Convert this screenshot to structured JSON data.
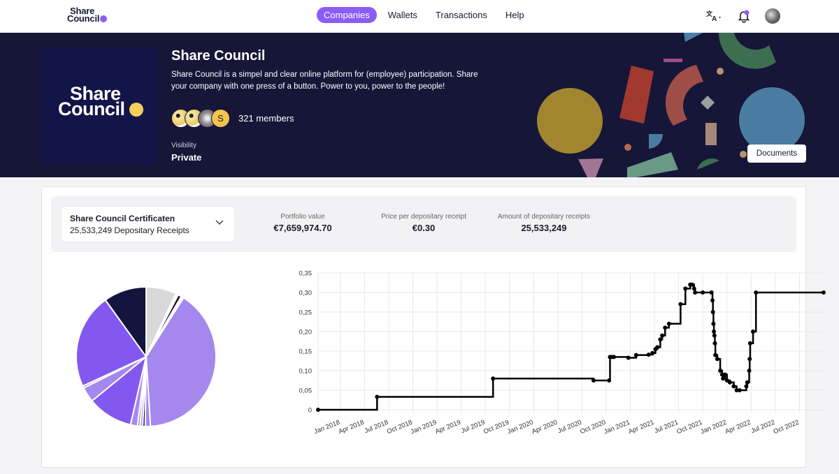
{
  "topbar": {
    "logo": {
      "line1": "Share",
      "line2": "Council"
    },
    "nav": [
      {
        "label": "Companies",
        "active": true
      },
      {
        "label": "Wallets"
      },
      {
        "label": "Transactions"
      },
      {
        "label": "Help"
      }
    ],
    "icons": {
      "translate": "translate-icon",
      "notifications": "bell-icon",
      "avatar": "user-avatar"
    }
  },
  "hero": {
    "logo": {
      "line1": "Share",
      "line2": "Council"
    },
    "title": "Share Council",
    "description": "Share Council is a simpel and clear online platform for (employee) participation. Share your company with one press of a button. Power to you, power to the people!",
    "members_label": "321 members",
    "member_avatar_initial": "S",
    "visibility_label": "Visibility",
    "visibility_value": "Private",
    "documents_label": "Documents"
  },
  "summary": {
    "selector": {
      "name": "Share Council Certificaten",
      "subtitle": "25,533,249 Depositary Receipts"
    },
    "stats": [
      {
        "label": "Portfolio value",
        "value": "€7,659,974.70"
      },
      {
        "label": "Price per depositary receipt",
        "value": "€0.30"
      },
      {
        "label": "Amount of depositary receipts",
        "value": "25,533,249"
      }
    ]
  },
  "colors": {
    "accent": "#8b5cf6",
    "hero_bg": "#161638",
    "dark": "#131447",
    "gold": "#f5cf5a"
  },
  "chart_data": [
    {
      "type": "pie",
      "title": "",
      "slices": [
        {
          "value": 7.0,
          "color": "#d9d9d9"
        },
        {
          "value": 0.6,
          "color": "#ffffff"
        },
        {
          "value": 0.8,
          "color": "#14143f"
        },
        {
          "value": 0.6,
          "color": "#ffffff"
        },
        {
          "value": 40.0,
          "color": "#a588ee"
        },
        {
          "value": 1.2,
          "color": "#a588ee"
        },
        {
          "value": 0.6,
          "color": "#14143f"
        },
        {
          "value": 0.6,
          "color": "#a588ee"
        },
        {
          "value": 0.6,
          "color": "#a588ee"
        },
        {
          "value": 1.6,
          "color": "#a588ee"
        },
        {
          "value": 10.5,
          "color": "#8358f0"
        },
        {
          "value": 3.5,
          "color": "#a588ee"
        },
        {
          "value": 0.5,
          "color": "#a588ee"
        },
        {
          "value": 22.0,
          "color": "#8358f0"
        },
        {
          "value": 9.9,
          "color": "#14143f"
        }
      ]
    },
    {
      "type": "line",
      "step": true,
      "title": "",
      "xlabel": "",
      "ylabel": "",
      "ylim": [
        0,
        0.35
      ],
      "yticks": [
        "0",
        "0,05",
        "0,10",
        "0,15",
        "0,20",
        "0,25",
        "0,30",
        "0,35"
      ],
      "xticks": [
        "Jan 2018",
        "Apr 2018",
        "Jul 2018",
        "Oct 2018",
        "Jan 2019",
        "Apr 2019",
        "Jul 2019",
        "Oct 2019",
        "Jan 2020",
        "Apr 2020",
        "Jul 2020",
        "Oct 2020",
        "Jan 2021",
        "Apr 2021",
        "Jul 2021",
        "Oct 2021",
        "Jan 2022",
        "Apr 2022",
        "Jul 2022",
        "Oct 2022"
      ],
      "xlim": [
        2017.77,
        2023.0
      ],
      "grid": true,
      "series": [
        {
          "name": "Price per depositary receipt",
          "points": [
            [
              2017.77,
              0.0
            ],
            [
              2018.38,
              0.033
            ],
            [
              2019.58,
              0.08
            ],
            [
              2020.62,
              0.075
            ],
            [
              2020.78,
              0.075
            ],
            [
              2020.79,
              0.135
            ],
            [
              2020.81,
              0.135
            ],
            [
              2020.83,
              0.135
            ],
            [
              2020.98,
              0.133
            ],
            [
              2021.06,
              0.14
            ],
            [
              2021.19,
              0.141
            ],
            [
              2021.23,
              0.145
            ],
            [
              2021.26,
              0.155
            ],
            [
              2021.28,
              0.16
            ],
            [
              2021.31,
              0.18
            ],
            [
              2021.33,
              0.19
            ],
            [
              2021.36,
              0.21
            ],
            [
              2021.4,
              0.22
            ],
            [
              2021.52,
              0.27
            ],
            [
              2021.57,
              0.31
            ],
            [
              2021.62,
              0.32
            ],
            [
              2021.64,
              0.32
            ],
            [
              2021.66,
              0.31
            ],
            [
              2021.67,
              0.3
            ],
            [
              2021.75,
              0.3
            ],
            [
              2021.84,
              0.3
            ],
            [
              2021.85,
              0.28
            ],
            [
              2021.855,
              0.25
            ],
            [
              2021.86,
              0.22
            ],
            [
              2021.865,
              0.2
            ],
            [
              2021.87,
              0.19
            ],
            [
              2021.875,
              0.17
            ],
            [
              2021.88,
              0.14
            ],
            [
              2021.9,
              0.13
            ],
            [
              2021.93,
              0.1
            ],
            [
              2021.95,
              0.09
            ],
            [
              2021.96,
              0.08
            ],
            [
              2021.98,
              0.09
            ],
            [
              2022.0,
              0.075
            ],
            [
              2022.03,
              0.07
            ],
            [
              2022.07,
              0.06
            ],
            [
              2022.1,
              0.05
            ],
            [
              2022.13,
              0.05
            ],
            [
              2022.2,
              0.06
            ],
            [
              2022.21,
              0.07
            ],
            [
              2022.23,
              0.1
            ],
            [
              2022.235,
              0.13
            ],
            [
              2022.24,
              0.17
            ],
            [
              2022.27,
              0.2
            ],
            [
              2022.3,
              0.3
            ],
            [
              2023.0,
              0.3
            ]
          ]
        }
      ]
    }
  ]
}
